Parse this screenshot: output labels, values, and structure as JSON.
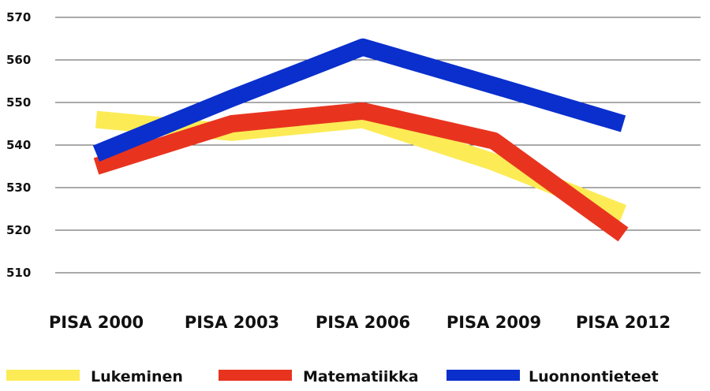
{
  "chart_data": {
    "type": "line",
    "categories": [
      "PISA 2000",
      "PISA 2003",
      "PISA 2006",
      "PISA 2009",
      "PISA 2012"
    ],
    "ylim": [
      510,
      570
    ],
    "yticks": [
      510,
      520,
      530,
      540,
      550,
      560,
      570
    ],
    "grid": true,
    "legend_position": "bottom",
    "series": [
      {
        "name": "Lukeminen",
        "color": "#FCEB55",
        "values": [
          546,
          543,
          546,
          536,
          524
        ]
      },
      {
        "name": "Matematiikka",
        "color": "#E8341F",
        "values": [
          535,
          545,
          548,
          541,
          519
        ]
      },
      {
        "name": "Luonnontieteet",
        "color": "#0A2FCC",
        "values": [
          538,
          551,
          563,
          554,
          545
        ]
      }
    ]
  }
}
